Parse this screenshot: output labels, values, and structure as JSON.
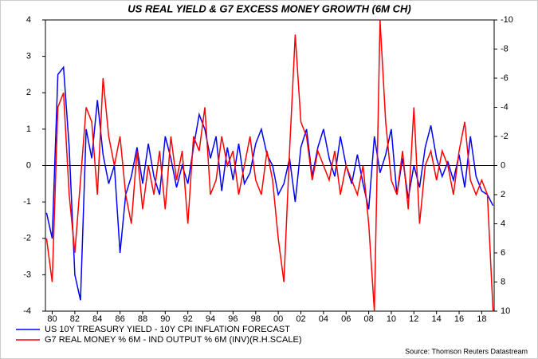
{
  "chart_data": {
    "type": "line",
    "title": "US REAL YIELD & G7 EXCESS MONEY GROWTH (6M CH)",
    "source": "Source: Thomson Reuters Datastream",
    "x": [
      1979.5,
      1980,
      1980.5,
      1981,
      1981.5,
      1982,
      1982.5,
      1983,
      1983.5,
      1984,
      1984.5,
      1985,
      1985.5,
      1986,
      1986.5,
      1987,
      1987.5,
      1988,
      1988.5,
      1989,
      1989.5,
      1990,
      1990.5,
      1991,
      1991.5,
      1992,
      1992.5,
      1993,
      1993.5,
      1994,
      1994.5,
      1995,
      1995.5,
      1996,
      1996.5,
      1997,
      1997.5,
      1998,
      1998.5,
      1999,
      1999.5,
      2000,
      2000.5,
      2001,
      2001.5,
      2002,
      2002.5,
      2003,
      2003.5,
      2004,
      2004.5,
      2005,
      2005.5,
      2006,
      2006.5,
      2007,
      2007.5,
      2008,
      2008.5,
      2009,
      2009.5,
      2010,
      2010.5,
      2011,
      2011.5,
      2012,
      2012.5,
      2013,
      2013.5,
      2014,
      2014.5,
      2015,
      2015.5,
      2016,
      2016.5,
      2017,
      2017.5,
      2018,
      2018.5,
      2019
    ],
    "series": [
      {
        "name": "US 10Y TREASURY YIELD - 10Y CPI INFLATION FORECAST",
        "color": "#0000ff",
        "values": [
          -1.3,
          -2.0,
          2.5,
          2.7,
          0.5,
          -3.0,
          -3.7,
          1.0,
          0.2,
          1.8,
          0.3,
          -0.5,
          0.0,
          -2.4,
          -0.8,
          -0.3,
          0.5,
          -0.5,
          0.6,
          -0.3,
          -0.8,
          0.8,
          0.2,
          -0.6,
          0.0,
          -0.5,
          0.5,
          1.4,
          1.0,
          0.2,
          0.8,
          -0.7,
          0.5,
          -0.4,
          0.6,
          -0.5,
          -0.2,
          0.6,
          1.0,
          0.3,
          0.0,
          -0.8,
          -0.5,
          0.2,
          -1.0,
          0.5,
          1.0,
          -0.3,
          0.5,
          1.0,
          0.2,
          -0.3,
          0.8,
          0.0,
          -0.5,
          0.3,
          -0.5,
          -1.2,
          0.8,
          -0.2,
          0.3,
          1.0,
          -0.8,
          0.2,
          -0.9,
          0.0,
          -0.6,
          0.5,
          1.1,
          0.2,
          -0.3,
          0.1,
          -0.4,
          0.3,
          -0.6,
          0.8,
          -0.3,
          -0.7,
          -0.8,
          -1.1
        ]
      },
      {
        "name": "G7 REAL MONEY % 6M - IND OUTPUT % 6M (INV)(R.H.SCALE)",
        "color": "#ff0000",
        "axis": "y2",
        "values": [
          5,
          8,
          -4,
          -5,
          2,
          6,
          1,
          -4,
          -3,
          2,
          -6,
          -2,
          0,
          -2,
          2,
          4,
          -1,
          3,
          0,
          2,
          -1,
          3,
          -2,
          1,
          -1,
          4,
          -2,
          -1,
          -4,
          2,
          1,
          -2,
          0,
          -1,
          2,
          0,
          -2,
          1,
          2,
          -1,
          1,
          5,
          8,
          -1,
          -9,
          -3,
          -2,
          1,
          -1,
          0,
          1,
          -1,
          2,
          0,
          1,
          2,
          0,
          4,
          10,
          -10,
          -3,
          1,
          2,
          -1,
          3,
          -4,
          4,
          0,
          -1,
          1,
          -1,
          0,
          2,
          -1,
          -3,
          1,
          2,
          1,
          2,
          10
        ]
      }
    ],
    "xlim": [
      1979.4,
      2019.1
    ],
    "xticks": [
      {
        "value": 1980,
        "label": "80"
      },
      {
        "value": 1982,
        "label": "82"
      },
      {
        "value": 1984,
        "label": "84"
      },
      {
        "value": 1986,
        "label": "86"
      },
      {
        "value": 1988,
        "label": "88"
      },
      {
        "value": 1990,
        "label": "90"
      },
      {
        "value": 1992,
        "label": "92"
      },
      {
        "value": 1994,
        "label": "94"
      },
      {
        "value": 1996,
        "label": "96"
      },
      {
        "value": 1998,
        "label": "98"
      },
      {
        "value": 2000,
        "label": "00"
      },
      {
        "value": 2002,
        "label": "02"
      },
      {
        "value": 2004,
        "label": "04"
      },
      {
        "value": 2006,
        "label": "06"
      },
      {
        "value": 2008,
        "label": "08"
      },
      {
        "value": 2010,
        "label": "10"
      },
      {
        "value": 2012,
        "label": "12"
      },
      {
        "value": 2014,
        "label": "14"
      },
      {
        "value": 2016,
        "label": "16"
      },
      {
        "value": 2018,
        "label": "18"
      }
    ],
    "ylim": [
      -4,
      4
    ],
    "yticks": [
      -4,
      -3,
      -2,
      -1,
      0,
      1,
      2,
      3,
      4
    ],
    "y2lim": [
      10,
      -10
    ],
    "y2ticks": [
      -10,
      -8,
      -6,
      -4,
      -2,
      0,
      2,
      4,
      6,
      8,
      10
    ],
    "hline": 0
  }
}
